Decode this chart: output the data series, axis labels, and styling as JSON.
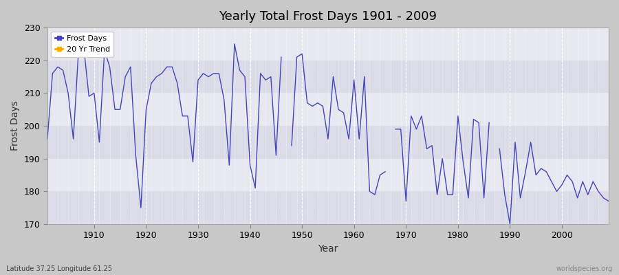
{
  "title": "Yearly Total Frost Days 1901 - 2009",
  "xlabel": "Year",
  "ylabel": "Frost Days",
  "lat_lon_label": "Latitude 37.25 Longitude 61.25",
  "watermark": "worldspecies.org",
  "line_color": "#4444bb",
  "trend_color": "#ffaa00",
  "fig_bg_color": "#c8c8c8",
  "plot_bg_color": "#e8e8f0",
  "band_colors": [
    "#dcdce8",
    "#e8e8f0"
  ],
  "ylim": [
    170,
    230
  ],
  "xlim": [
    1901,
    2009
  ],
  "yticks": [
    170,
    180,
    190,
    200,
    210,
    220,
    230
  ],
  "xticks": [
    1910,
    1920,
    1930,
    1940,
    1950,
    1960,
    1970,
    1980,
    1990,
    2000
  ],
  "years": [
    1901,
    1902,
    1903,
    1904,
    1905,
    1906,
    1907,
    1908,
    1909,
    1910,
    1911,
    1912,
    1913,
    1914,
    1915,
    1916,
    1917,
    1918,
    1919,
    1920,
    1921,
    1922,
    1923,
    1924,
    1925,
    1926,
    1927,
    1928,
    1929,
    1930,
    1931,
    1932,
    1933,
    1934,
    1935,
    1936,
    1937,
    1938,
    1939,
    1940,
    1941,
    1942,
    1943,
    1944,
    1945,
    1946,
    1947,
    1948,
    1949,
    1950,
    1951,
    1952,
    1953,
    1954,
    1955,
    1956,
    1957,
    1958,
    1959,
    1960,
    1961,
    1962,
    1963,
    1964,
    1965,
    1966,
    1967,
    1968,
    1969,
    1970,
    1971,
    1972,
    1973,
    1974,
    1975,
    1976,
    1977,
    1978,
    1979,
    1980,
    1981,
    1982,
    1983,
    1984,
    1985,
    1986,
    1987,
    1988,
    1989,
    1990,
    1991,
    1992,
    1993,
    1994,
    1995,
    1996,
    1997,
    1998,
    1999,
    2000,
    2001,
    2002,
    2003,
    2004,
    2005,
    2006,
    2007,
    2008,
    2009
  ],
  "frost_days": [
    196,
    216,
    218,
    217,
    210,
    196,
    223,
    224,
    209,
    210,
    195,
    223,
    218,
    205,
    205,
    215,
    218,
    191,
    175,
    205,
    213,
    215,
    216,
    218,
    218,
    213,
    203,
    203,
    189,
    214,
    216,
    215,
    216,
    216,
    208,
    188,
    225,
    217,
    215,
    188,
    181,
    216,
    214,
    215,
    191,
    221,
    null,
    194,
    221,
    222,
    207,
    206,
    207,
    206,
    196,
    215,
    205,
    204,
    196,
    214,
    196,
    215,
    180,
    179,
    185,
    186,
    null,
    199,
    199,
    177,
    203,
    199,
    203,
    193,
    194,
    179,
    190,
    179,
    179,
    203,
    189,
    178,
    202,
    201,
    178,
    201,
    null,
    193,
    179,
    170,
    195,
    178,
    186,
    195,
    185,
    187,
    186,
    183,
    180,
    182,
    185,
    183,
    178,
    183,
    179,
    183,
    180,
    178,
    177
  ]
}
